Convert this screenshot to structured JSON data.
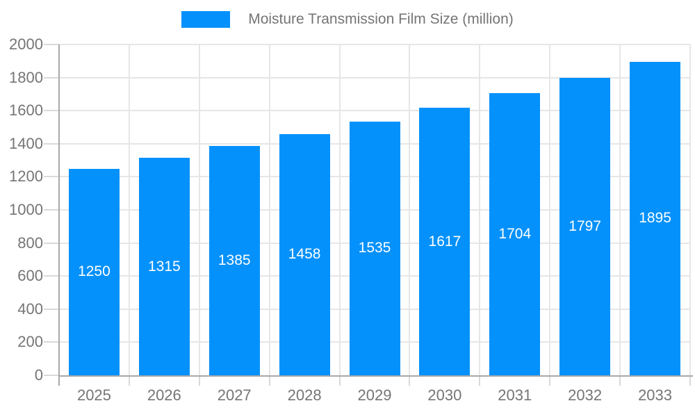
{
  "legend": {
    "label": "Moisture Transmission Film Size (million)"
  },
  "chart_data": {
    "type": "bar",
    "title": "Moisture Transmission Film Size (million)",
    "series_name": "Moisture Transmission Film Size (million)",
    "categories": [
      "2025",
      "2026",
      "2027",
      "2028",
      "2029",
      "2030",
      "2031",
      "2032",
      "2033"
    ],
    "values": [
      1250,
      1315,
      1385,
      1458,
      1535,
      1617,
      1704,
      1797,
      1895
    ],
    "xlabel": "",
    "ylabel": "",
    "ylim": [
      0,
      2000
    ],
    "ytick_step": 200,
    "ytick_labels": [
      "0",
      "200",
      "400",
      "600",
      "800",
      "1000",
      "1200",
      "1400",
      "1600",
      "1800",
      "2000"
    ],
    "grid": true,
    "legend_position": "top-center",
    "value_label_position": "inside-center",
    "bar_color": "#0591fb",
    "value_label_color": "#ffffff",
    "axis_text_color": "#757575",
    "grid_color": "#e6e6e6",
    "axis_line_color": "#a8a8a8",
    "tick_color": "#d9d9d9",
    "background_color": "#ffffff"
  }
}
